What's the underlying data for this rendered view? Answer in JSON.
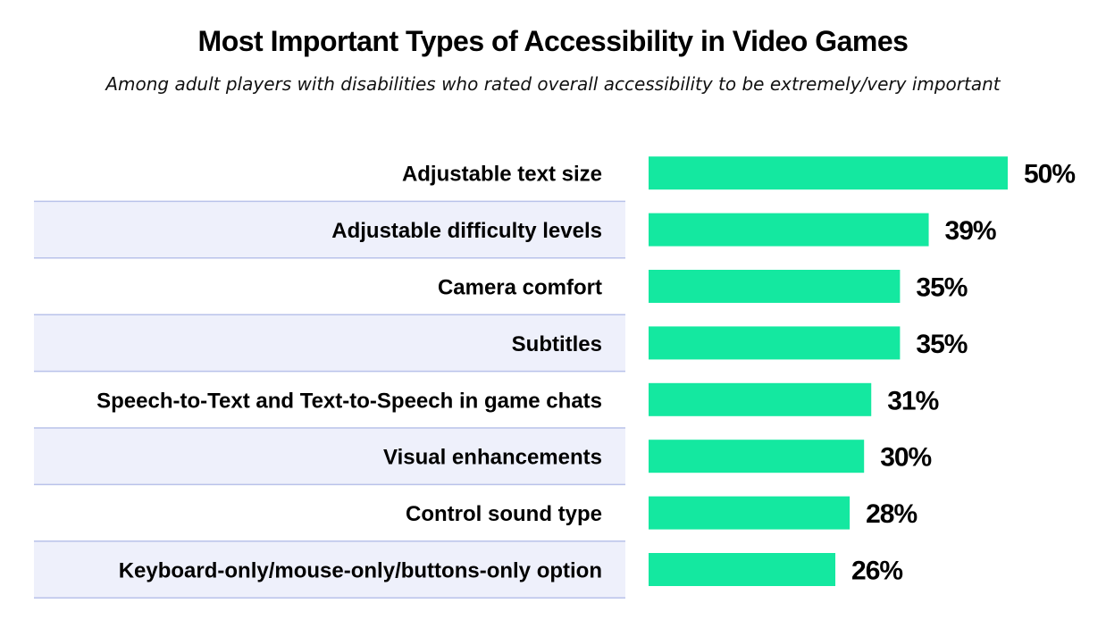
{
  "colors": {
    "bar": "#14e8a0",
    "stripe": "#eef0fb",
    "row_border": "#b9c2ea",
    "text": "#000000"
  },
  "chart_data": {
    "type": "bar",
    "orientation": "horizontal",
    "title": "Most Important Types of Accessibility in Video Games",
    "subtitle": "Among adult players with disabilities who rated overall accessibility to be extremely/very important",
    "categories": [
      "Adjustable text size",
      "Adjustable difficulty levels",
      "Camera comfort",
      "Subtitles",
      "Speech-to-Text and Text-to-Speech in game chats",
      "Visual enhancements",
      "Control sound type",
      "Keyboard-only/mouse-only/buttons-only option"
    ],
    "values": [
      50,
      39,
      35,
      35,
      31,
      30,
      28,
      26
    ],
    "value_labels": [
      "50%",
      "39%",
      "35%",
      "35%",
      "31%",
      "30%",
      "28%",
      "26%"
    ],
    "xlim": [
      0,
      50
    ],
    "unit": "%",
    "grid": false,
    "legend": "none"
  }
}
